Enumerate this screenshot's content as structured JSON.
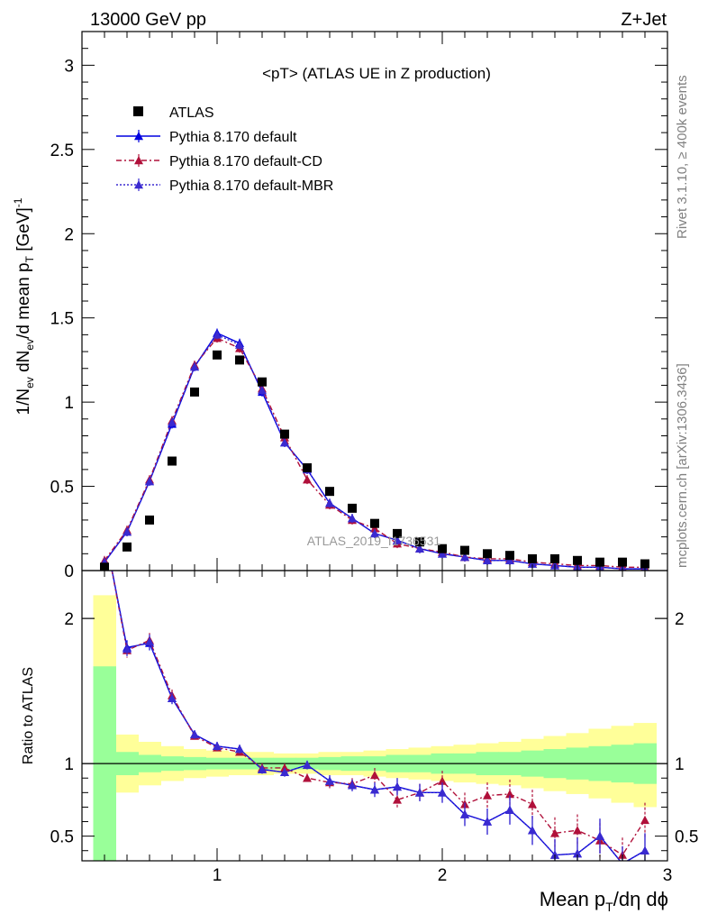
{
  "header": {
    "left": "13000 GeV pp",
    "right": "Z+Jet"
  },
  "side_text": {
    "rivet": "Rivet 3.1.10, ≥ 400k events",
    "mcplots": "mcplots.cern.ch [arXiv:1306.3436]"
  },
  "watermark": "ATLAS_2019_I1736531",
  "colors": {
    "data": "#000000",
    "default": "#0000e0",
    "cd": "#b0103a",
    "mbr": "#3a2ad0",
    "band_inner": "#99ff99",
    "band_outer": "#ffff99"
  },
  "chart_data": [
    {
      "type": "scatter",
      "title": "<pT> (ATLAS UE in Z production)",
      "xlabel": "Mean p_T/dη dϕ",
      "ylabel": "1/N_ev dN_ev/d mean p_T [GeV]^-1",
      "xlim": [
        0.4,
        3.0
      ],
      "ylim": [
        0,
        3.2
      ],
      "yticks": [
        "0",
        "0.5",
        "1",
        "1.5",
        "2",
        "2.5",
        "3"
      ],
      "legend": [
        "ATLAS",
        "Pythia 8.170 default",
        "Pythia 8.170 default-CD",
        "Pythia 8.170 default-MBR"
      ],
      "legend_position": "top-left",
      "x": [
        0.5,
        0.6,
        0.7,
        0.8,
        0.9,
        1.0,
        1.1,
        1.2,
        1.3,
        1.4,
        1.5,
        1.6,
        1.7,
        1.8,
        1.9,
        2.0,
        2.1,
        2.2,
        2.3,
        2.4,
        2.5,
        2.6,
        2.7,
        2.8,
        2.9
      ],
      "series": [
        {
          "name": "ATLAS",
          "values": [
            0.02,
            0.14,
            0.3,
            0.65,
            1.06,
            1.28,
            1.25,
            1.12,
            0.81,
            0.61,
            0.47,
            0.37,
            0.28,
            0.22,
            0.17,
            0.13,
            0.12,
            0.1,
            0.09,
            0.07,
            0.07,
            0.06,
            0.05,
            0.05,
            0.04
          ]
        },
        {
          "name": "Pythia 8.170 default",
          "values": [
            0.05,
            0.23,
            0.53,
            0.87,
            1.21,
            1.41,
            1.35,
            1.06,
            0.76,
            0.6,
            0.4,
            0.31,
            0.22,
            0.18,
            0.13,
            0.1,
            0.08,
            0.06,
            0.06,
            0.04,
            0.03,
            0.02,
            0.02,
            0.01,
            0.01
          ]
        },
        {
          "name": "Pythia 8.170 default-CD",
          "values": [
            0.06,
            0.24,
            0.54,
            0.89,
            1.22,
            1.38,
            1.32,
            1.08,
            0.79,
            0.54,
            0.39,
            0.3,
            0.25,
            0.16,
            0.13,
            0.11,
            0.08,
            0.07,
            0.07,
            0.05,
            0.04,
            0.03,
            0.03,
            0.02,
            0.02
          ]
        },
        {
          "name": "Pythia 8.170 default-MBR",
          "values": [
            0.05,
            0.23,
            0.53,
            0.88,
            1.21,
            1.4,
            1.34,
            1.07,
            0.76,
            0.6,
            0.4,
            0.31,
            0.22,
            0.18,
            0.13,
            0.1,
            0.08,
            0.06,
            0.06,
            0.04,
            0.03,
            0.02,
            0.02,
            0.01,
            0.01
          ]
        }
      ]
    },
    {
      "type": "line",
      "ylabel": "Ratio to ATLAS",
      "xlabel": "Mean p_T/dη dϕ",
      "xlim": [
        0.4,
        3.0
      ],
      "ylim": [
        0.33,
        2.33
      ],
      "yticks": [
        "0.5",
        "1",
        "2"
      ],
      "xticks": [
        "1",
        "2",
        "3"
      ],
      "bin_edges": [
        0.45,
        0.55,
        0.65,
        0.75,
        0.85,
        0.95,
        1.05,
        1.15,
        1.25,
        1.35,
        1.45,
        1.55,
        1.65,
        1.75,
        1.85,
        1.95,
        2.05,
        2.15,
        2.25,
        2.35,
        2.45,
        2.55,
        2.65,
        2.75,
        2.85,
        2.95
      ],
      "band_inner": [
        [
          0.3,
          1.67
        ],
        [
          0.92,
          1.08
        ],
        [
          0.94,
          1.06
        ],
        [
          0.95,
          1.05
        ],
        [
          0.955,
          1.045
        ],
        [
          0.96,
          1.04
        ],
        [
          0.96,
          1.04
        ],
        [
          0.96,
          1.04
        ],
        [
          0.96,
          1.04
        ],
        [
          0.96,
          1.04
        ],
        [
          0.955,
          1.045
        ],
        [
          0.95,
          1.05
        ],
        [
          0.95,
          1.05
        ],
        [
          0.94,
          1.06
        ],
        [
          0.94,
          1.06
        ],
        [
          0.93,
          1.07
        ],
        [
          0.93,
          1.07
        ],
        [
          0.92,
          1.08
        ],
        [
          0.92,
          1.08
        ],
        [
          0.91,
          1.09
        ],
        [
          0.9,
          1.1
        ],
        [
          0.89,
          1.11
        ],
        [
          0.88,
          1.12
        ],
        [
          0.87,
          1.13
        ],
        [
          0.86,
          1.14
        ]
      ],
      "band_outer": [
        [
          0.3,
          2.16
        ],
        [
          0.8,
          1.2
        ],
        [
          0.85,
          1.15
        ],
        [
          0.88,
          1.12
        ],
        [
          0.9,
          1.1
        ],
        [
          0.91,
          1.09
        ],
        [
          0.92,
          1.08
        ],
        [
          0.92,
          1.08
        ],
        [
          0.93,
          1.07
        ],
        [
          0.93,
          1.07
        ],
        [
          0.92,
          1.08
        ],
        [
          0.92,
          1.08
        ],
        [
          0.91,
          1.09
        ],
        [
          0.9,
          1.1
        ],
        [
          0.89,
          1.11
        ],
        [
          0.88,
          1.12
        ],
        [
          0.87,
          1.13
        ],
        [
          0.86,
          1.14
        ],
        [
          0.85,
          1.15
        ],
        [
          0.83,
          1.17
        ],
        [
          0.81,
          1.19
        ],
        [
          0.79,
          1.21
        ],
        [
          0.76,
          1.24
        ],
        [
          0.73,
          1.26
        ],
        [
          0.7,
          1.28
        ]
      ],
      "x": [
        0.5,
        0.6,
        0.7,
        0.8,
        0.9,
        1.0,
        1.1,
        1.2,
        1.3,
        1.4,
        1.5,
        1.6,
        1.7,
        1.8,
        1.9,
        2.0,
        2.1,
        2.2,
        2.3,
        2.4,
        2.5,
        2.6,
        2.7,
        2.8,
        2.9
      ],
      "series": [
        {
          "name": "Pythia 8.170 default",
          "values": [
            2.6,
            1.8,
            1.83,
            1.45,
            1.2,
            1.12,
            1.1,
            0.96,
            0.94,
            0.99,
            0.88,
            0.85,
            0.82,
            0.84,
            0.8,
            0.8,
            0.65,
            0.6,
            0.68,
            0.54,
            0.37,
            0.38,
            0.5,
            0.31,
            0.4
          ],
          "errors": [
            0,
            0.05,
            0.05,
            0.04,
            0.03,
            0.03,
            0.03,
            0.03,
            0.03,
            0.03,
            0.04,
            0.04,
            0.05,
            0.06,
            0.06,
            0.07,
            0.08,
            0.09,
            0.1,
            0.1,
            0.11,
            0.11,
            0.12,
            0.12,
            0.12
          ]
        },
        {
          "name": "Pythia 8.170 default-CD",
          "values": [
            2.6,
            1.78,
            1.85,
            1.47,
            1.19,
            1.11,
            1.08,
            0.97,
            0.97,
            0.9,
            0.87,
            0.86,
            0.92,
            0.75,
            0.8,
            0.88,
            0.72,
            0.78,
            0.79,
            0.72,
            0.52,
            0.54,
            0.47,
            0.37,
            0.61
          ],
          "errors": [
            0,
            0.05,
            0.05,
            0.04,
            0.03,
            0.03,
            0.03,
            0.03,
            0.03,
            0.03,
            0.04,
            0.04,
            0.05,
            0.06,
            0.06,
            0.07,
            0.08,
            0.09,
            0.1,
            0.1,
            0.11,
            0.11,
            0.12,
            0.12,
            0.12
          ]
        },
        {
          "name": "Pythia 8.170 default-MBR",
          "values": [
            2.6,
            1.79,
            1.84,
            1.45,
            1.2,
            1.12,
            1.1,
            0.96,
            0.94,
            0.99,
            0.88,
            0.85,
            0.82,
            0.84,
            0.8,
            0.8,
            0.65,
            0.6,
            0.68,
            0.54,
            0.37,
            0.38,
            0.5,
            0.31,
            0.4
          ],
          "errors": [
            0,
            0.05,
            0.05,
            0.04,
            0.03,
            0.03,
            0.03,
            0.03,
            0.03,
            0.03,
            0.04,
            0.04,
            0.05,
            0.06,
            0.06,
            0.07,
            0.08,
            0.09,
            0.1,
            0.1,
            0.11,
            0.11,
            0.12,
            0.12,
            0.12
          ]
        }
      ]
    }
  ]
}
